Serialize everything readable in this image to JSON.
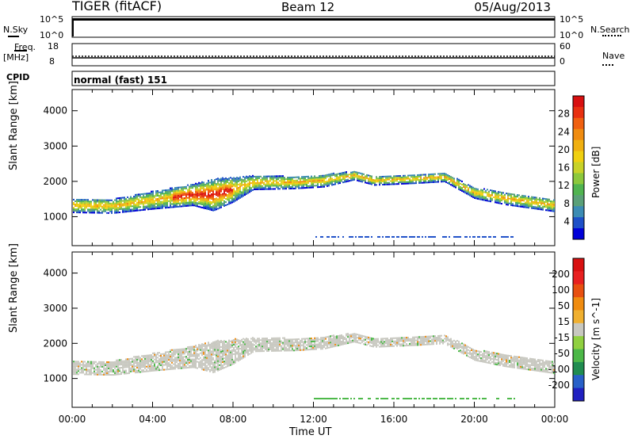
{
  "header": {
    "title": "TIGER (fitACF)",
    "beam": "Beam 12",
    "date": "05/Aug/2013"
  },
  "status_panels": {
    "nsky_label": "N.Sky",
    "nsky_ticks": [
      "10^5",
      "10^0"
    ],
    "nsearch_label": "N.Search",
    "nsearch_ticks": [
      "10^5",
      "10^0"
    ],
    "freq_label": "Freq.",
    "freq_unit": "[MHz]",
    "freq_ticks": [
      "18",
      "8"
    ],
    "nave_label": "Nave",
    "nave_ticks": [
      "60",
      "0"
    ],
    "cpid_label": "CPID",
    "cpid_value": "normal (fast) 151"
  },
  "chart_data": [
    {
      "type": "heatmap",
      "name": "power",
      "ylabel": "Slant Range [km]",
      "yticks": [
        1000,
        2000,
        3000,
        4000
      ],
      "ylim": [
        180,
        4600
      ],
      "x_hours": [
        0,
        24
      ],
      "colorbar": {
        "label": "Power [dB]",
        "ticks": [
          "28",
          "24",
          "20",
          "16",
          "12",
          "8",
          "4"
        ],
        "colors": [
          "#0000d8",
          "#1e50c8",
          "#3c8cb4",
          "#5aa078",
          "#50b450",
          "#8cc83c",
          "#c8d228",
          "#f0d010",
          "#f0b010",
          "#f08c10",
          "#f06010",
          "#e83010",
          "#d81010"
        ]
      },
      "echo_band": [
        {
          "h": 0.0,
          "center": 1300,
          "width": 400
        },
        {
          "h": 2.0,
          "center": 1280,
          "width": 400
        },
        {
          "h": 4.0,
          "center": 1450,
          "width": 500
        },
        {
          "h": 6.0,
          "center": 1600,
          "width": 600
        },
        {
          "h": 7.0,
          "center": 1600,
          "width": 900
        },
        {
          "h": 8.0,
          "center": 1750,
          "width": 700
        },
        {
          "h": 9.0,
          "center": 1950,
          "width": 400
        },
        {
          "h": 11.0,
          "center": 1950,
          "width": 350
        },
        {
          "h": 12.5,
          "center": 2000,
          "width": 350
        },
        {
          "h": 14.0,
          "center": 2150,
          "width": 250
        },
        {
          "h": 15.0,
          "center": 2000,
          "width": 250
        },
        {
          "h": 17.0,
          "center": 2050,
          "width": 250
        },
        {
          "h": 18.5,
          "center": 2100,
          "width": 250
        },
        {
          "h": 20.0,
          "center": 1650,
          "width": 300
        },
        {
          "h": 21.5,
          "center": 1500,
          "width": 350
        },
        {
          "h": 24.0,
          "center": 1300,
          "width": 350
        }
      ]
    },
    {
      "type": "heatmap",
      "name": "velocity",
      "ylabel": "Slant Range [km]",
      "yticks": [
        1000,
        2000,
        3000,
        4000
      ],
      "ylim": [
        180,
        4600
      ],
      "x_hours": [
        0,
        24
      ],
      "colorbar": {
        "label": "Velocity [m s^-1]",
        "ticks": [
          "200",
          "100",
          "50",
          "15",
          "-15",
          "-50",
          "-100",
          "-200"
        ],
        "colors": [
          "#2020c0",
          "#2860c8",
          "#208c50",
          "#4cb848",
          "#90d040",
          "#c8c8c0",
          "#f0b030",
          "#f08c10",
          "#e85010",
          "#e82020",
          "#d81010"
        ]
      },
      "echo_band": [
        {
          "h": 0.0,
          "center": 1300,
          "width": 400
        },
        {
          "h": 2.0,
          "center": 1280,
          "width": 400
        },
        {
          "h": 4.0,
          "center": 1450,
          "width": 500
        },
        {
          "h": 6.0,
          "center": 1600,
          "width": 600
        },
        {
          "h": 7.0,
          "center": 1600,
          "width": 900
        },
        {
          "h": 8.0,
          "center": 1750,
          "width": 700
        },
        {
          "h": 9.0,
          "center": 1950,
          "width": 400
        },
        {
          "h": 11.0,
          "center": 1950,
          "width": 350
        },
        {
          "h": 12.5,
          "center": 2000,
          "width": 350
        },
        {
          "h": 14.0,
          "center": 2150,
          "width": 250
        },
        {
          "h": 15.0,
          "center": 2000,
          "width": 250
        },
        {
          "h": 17.0,
          "center": 2050,
          "width": 250
        },
        {
          "h": 18.5,
          "center": 2100,
          "width": 250
        },
        {
          "h": 20.0,
          "center": 1650,
          "width": 300
        },
        {
          "h": 21.5,
          "center": 1500,
          "width": 350
        },
        {
          "h": 24.0,
          "center": 1300,
          "width": 350
        }
      ]
    }
  ],
  "xaxis": {
    "label": "Time UT",
    "ticks": [
      "00:00",
      "04:00",
      "08:00",
      "12:00",
      "16:00",
      "20:00",
      "00:00"
    ]
  }
}
